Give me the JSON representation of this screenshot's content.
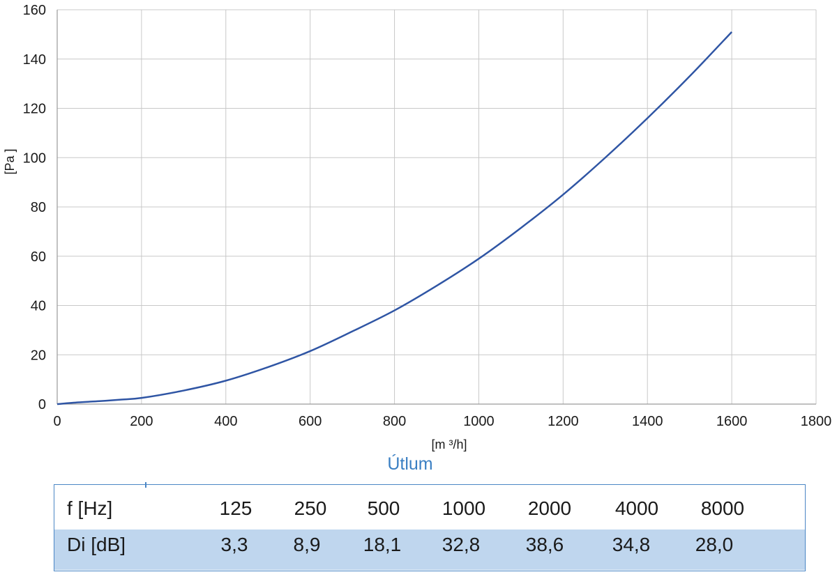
{
  "chart_data": {
    "type": "line",
    "title": "",
    "xlabel": "[m ³/h]",
    "ylabel": "[Pa ]",
    "xlim": [
      0,
      1800
    ],
    "ylim": [
      0,
      160
    ],
    "x_ticks": [
      0,
      200,
      400,
      600,
      800,
      1000,
      1200,
      1400,
      1600,
      1800
    ],
    "y_ticks": [
      0,
      20,
      40,
      60,
      80,
      100,
      120,
      140,
      160
    ],
    "grid": true,
    "legend": "none",
    "series": [
      {
        "color": "#2f55a4",
        "x": [
          0,
          50,
          100,
          150,
          200,
          300,
          400,
          500,
          600,
          700,
          800,
          900,
          1000,
          1100,
          1200,
          1300,
          1400,
          1500,
          1600
        ],
        "y": [
          0,
          0.7,
          1.2,
          1.8,
          2.5,
          5.5,
          9.5,
          15,
          21.5,
          29.5,
          38,
          48,
          59,
          71.5,
          85,
          100,
          116,
          133,
          151
        ]
      }
    ]
  },
  "table": {
    "title": "Útlum",
    "row1_label": "f [Hz]",
    "row2_label": "Di [dB]",
    "frequencies": [
      "125",
      "250",
      "500",
      "1000",
      "2000",
      "4000",
      "8000"
    ],
    "attenuation": [
      "3,3",
      "8,9",
      "18,1",
      "32,8",
      "38,6",
      "34,8",
      "28,0"
    ],
    "header_color": "#3a7fc3",
    "row2_fill": "#bfd6ee"
  }
}
